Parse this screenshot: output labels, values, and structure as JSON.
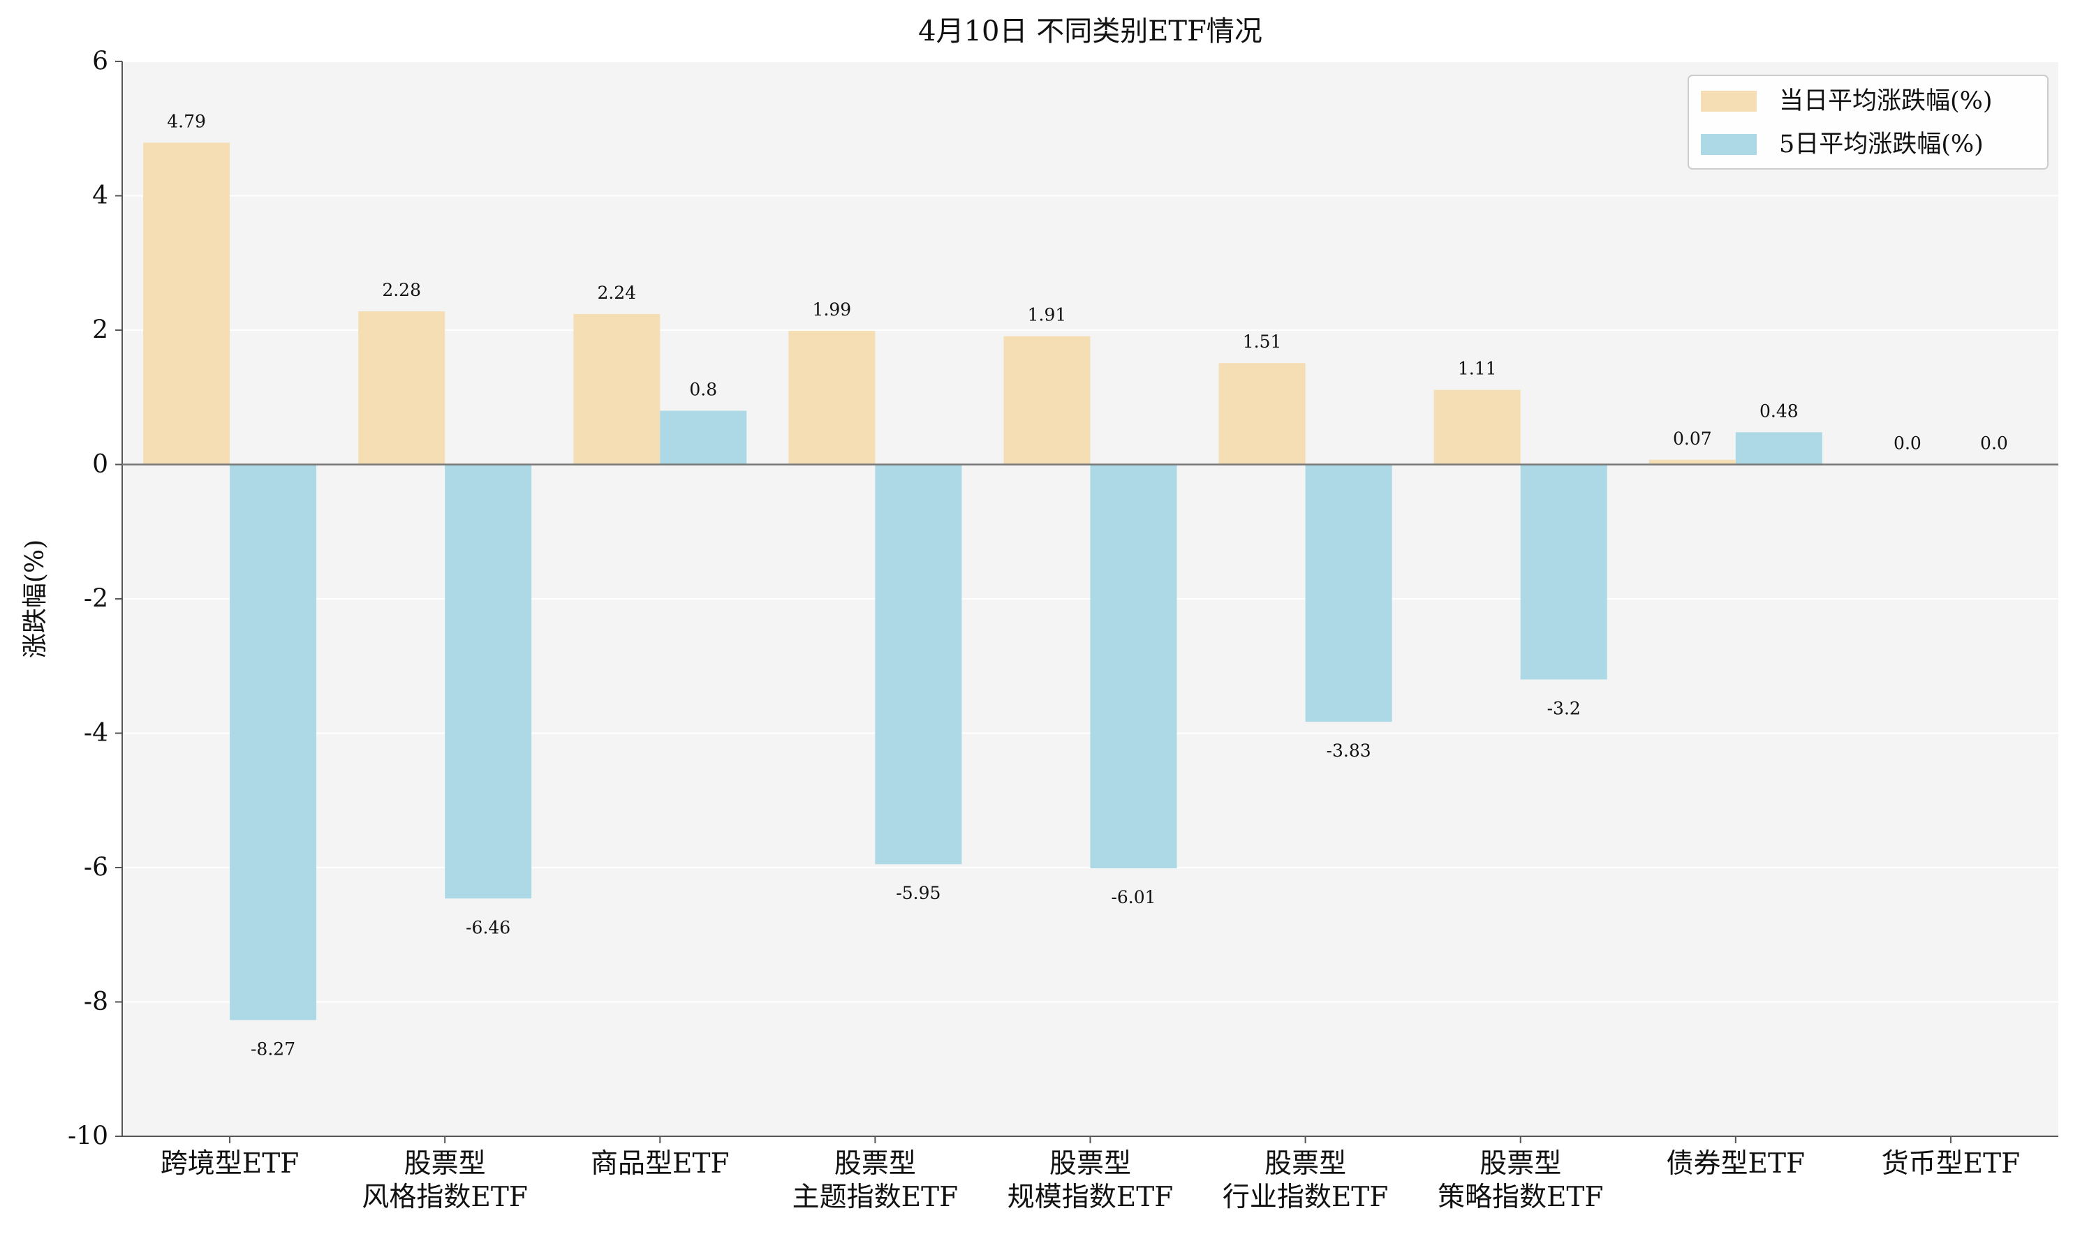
{
  "chart_data": {
    "type": "bar",
    "title": "4月10日 不同类别ETF情况",
    "xlabel": "",
    "ylabel": "涨跌幅(%)",
    "ylim": [
      -10,
      6
    ],
    "yticks": [
      6,
      4,
      2,
      0,
      -2,
      -4,
      -6,
      -8,
      -10
    ],
    "ytick_labels": [
      "6",
      "4",
      "2",
      "0",
      "-2",
      "-4",
      "-6",
      "-8",
      "-10"
    ],
    "grid": true,
    "legend_position": "top-right",
    "categories": [
      [
        "跨境型ETF"
      ],
      [
        "股票型",
        "风格指数ETF"
      ],
      [
        "商品型ETF"
      ],
      [
        "股票型",
        "主题指数ETF"
      ],
      [
        "股票型",
        "规模指数ETF"
      ],
      [
        "股票型",
        "行业指数ETF"
      ],
      [
        "股票型",
        "策略指数ETF"
      ],
      [
        "债券型ETF"
      ],
      [
        "货币型ETF"
      ]
    ],
    "series": [
      {
        "name": "当日平均涨跌幅(%)",
        "color": "#F5DEB3",
        "values": [
          4.79,
          2.28,
          2.24,
          1.99,
          1.91,
          1.51,
          1.11,
          0.07,
          0.0
        ],
        "labels": [
          "4.79",
          "2.28",
          "2.24",
          "1.99",
          "1.91",
          "1.51",
          "1.11",
          "0.07",
          "0.0"
        ]
      },
      {
        "name": "5日平均涨跌幅(%)",
        "color": "#ADD8E6",
        "values": [
          -8.27,
          -6.46,
          0.8,
          -5.95,
          -6.01,
          -3.83,
          -3.2,
          0.48,
          0.0
        ],
        "labels": [
          "-8.27",
          "-6.46",
          "0.8",
          "-5.95",
          "-6.01",
          "-3.83",
          "-3.2",
          "0.48",
          "0.0"
        ]
      }
    ],
    "colors": {
      "plot_background": "#F4F4F4",
      "grid": "#FFFFFF",
      "axis": "#555555",
      "zero_line": "#777777",
      "text": "#111111"
    }
  }
}
